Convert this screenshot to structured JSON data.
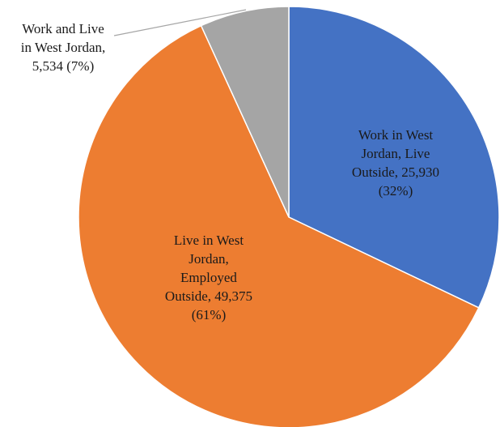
{
  "chart_data": {
    "type": "pie",
    "title": "",
    "start_angle_deg": 0,
    "direction": "clockwise",
    "slices": [
      {
        "label": "Work in West Jordan, Live Outside",
        "value": 25930,
        "percent": "32%",
        "color": "#4472c4",
        "label_lines": [
          "Work in West",
          "Jordan, Live",
          "Outside,  25,930",
          "(32%)"
        ]
      },
      {
        "label": "Live in West Jordan, Employed Outside",
        "value": 49375,
        "percent": "61%",
        "color": "#ed7d31",
        "label_lines": [
          "Live in West",
          "Jordan,",
          "Employed",
          "Outside,  49,375",
          "(61%)"
        ]
      },
      {
        "label": "Work and Live in West Jordan",
        "value": 5534,
        "percent": "7%",
        "color": "#a5a5a5",
        "label_lines": [
          "Work and Live",
          "in West Jordan,",
          "5,534  (7%)"
        ]
      }
    ],
    "legend": "none",
    "leader_line_color": "#a6a6a6"
  }
}
